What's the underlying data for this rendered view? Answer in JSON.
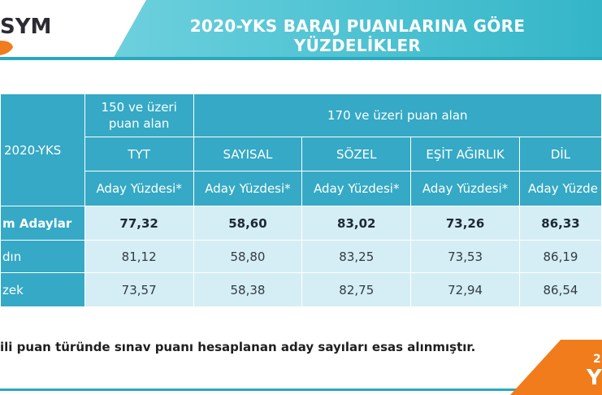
{
  "header": {
    "logo_text": "ÖSYM",
    "logo_visible": "SYM",
    "title": "2020-YKS BARAJ PUANLARINA GÖRE YÜZDELİKLER"
  },
  "table": {
    "corner_label": "2020-YKS",
    "group1_label": "150 ve üzeri puan alan",
    "group2_label": "170 ve üzeri puan alan",
    "columns": [
      "TYT",
      "SAYISAL",
      "SÖZEL",
      "EŞİT AĞIRLIK",
      "DİL"
    ],
    "metric_labels": [
      "Aday Yüzdesi*",
      "Aday Yüzdesi*",
      "Aday Yüzdesi*",
      "Aday Yüzdesi*",
      "Aday Yüzde"
    ],
    "rows": [
      {
        "label": "m Adaylar",
        "values": [
          "77,32",
          "58,60",
          "83,02",
          "73,26",
          "86,33"
        ]
      },
      {
        "label": "dın",
        "values": [
          "81,12",
          "58,80",
          "83,25",
          "73,53",
          "86,19"
        ]
      },
      {
        "label": "zek",
        "values": [
          "73,57",
          "58,38",
          "82,75",
          "72,94",
          "86,54"
        ]
      }
    ]
  },
  "footnote": "ili puan türünde sınav puanı hesaplanan aday sayıları esas alınmıştır.",
  "corner": {
    "num": "2",
    "letter": "Y"
  },
  "colors": {
    "accent": "#35a9c5",
    "light": "#d5eef6",
    "orange": "#f07c1b"
  }
}
